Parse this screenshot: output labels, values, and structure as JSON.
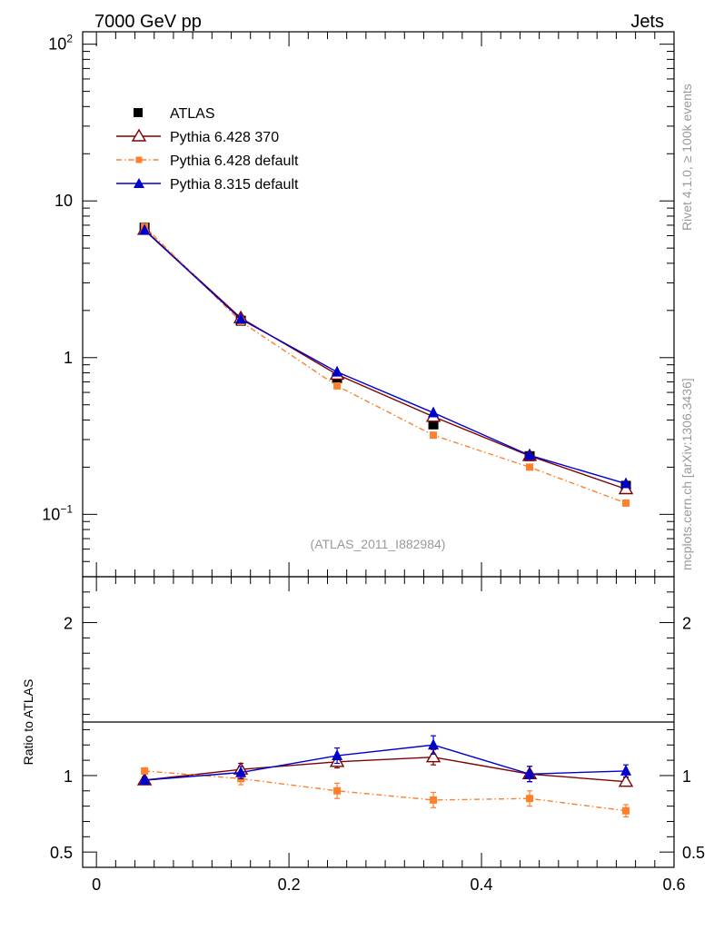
{
  "header": {
    "left_title": "7000 GeV pp",
    "right_title": "Jets"
  },
  "side_text": {
    "rivet": "Rivet 4.1.0, ≥ 100k events",
    "mcplots": "mcplots.cern.ch [arXiv:1306.3436]"
  },
  "colors": {
    "atlas": "#000000",
    "pythia6_370": "#7f0000",
    "pythia6_default": "#ff7f2a",
    "pythia8_default": "#0000cc"
  },
  "chart_data": [
    {
      "type": "line",
      "panel": "main",
      "yscale": "log",
      "xlim": [
        -0.0143,
        0.6
      ],
      "ylim": [
        0.04,
        120
      ],
      "xlabel": "",
      "ylabel": "",
      "y_tick_labels": [
        "10^-1",
        "1",
        "10",
        "10^2"
      ],
      "annotation": "(ATLAS_2011_I882984)",
      "legend_position": "top-left",
      "x": [
        0.05,
        0.15,
        0.25,
        0.35,
        0.45,
        0.55
      ],
      "series": [
        {
          "name": "ATLAS",
          "marker": "square",
          "values": [
            6.75,
            1.72,
            0.74,
            0.375,
            0.235,
            0.152
          ]
        },
        {
          "name": "Pythia 6.428 370",
          "marker": "open-triangle",
          "line": "solid",
          "values": [
            6.55,
            1.79,
            0.78,
            0.42,
            0.236,
            0.145
          ]
        },
        {
          "name": "Pythia 6.428 default",
          "marker": "small-square",
          "line": "dash-dot",
          "values": [
            6.85,
            1.7,
            0.66,
            0.32,
            0.2,
            0.118
          ]
        },
        {
          "name": "Pythia 8.315 default",
          "marker": "triangle",
          "line": "solid",
          "values": [
            6.5,
            1.76,
            0.81,
            0.445,
            0.238,
            0.157
          ]
        }
      ]
    },
    {
      "type": "line",
      "panel": "ratio",
      "xlim": [
        -0.0143,
        0.6
      ],
      "ylim": [
        0.4,
        2.3
      ],
      "xlabel": "",
      "ylabel": "Ratio to ATLAS",
      "x_tick_labels": [
        "0",
        "0.2",
        "0.4",
        "0.6"
      ],
      "y_tick_labels": [
        "0.5",
        "1",
        "2"
      ],
      "x": [
        0.05,
        0.15,
        0.25,
        0.35,
        0.45,
        0.55
      ],
      "series": [
        {
          "name": "Pythia 6.428 370",
          "values": [
            0.97,
            1.04,
            1.09,
            1.12,
            1.01,
            0.96
          ],
          "errors": [
            0.02,
            0.04,
            0.04,
            0.05,
            0.05,
            0.02
          ]
        },
        {
          "name": "Pythia 6.428 default",
          "values": [
            1.03,
            0.98,
            0.9,
            0.84,
            0.85,
            0.77
          ],
          "errors": [
            0.02,
            0.04,
            0.05,
            0.05,
            0.05,
            0.04
          ]
        },
        {
          "name": "Pythia 8.315 default",
          "values": [
            0.97,
            1.02,
            1.13,
            1.2,
            1.01,
            1.03
          ],
          "errors": [
            0.02,
            0.04,
            0.05,
            0.06,
            0.05,
            0.04
          ]
        }
      ]
    }
  ]
}
